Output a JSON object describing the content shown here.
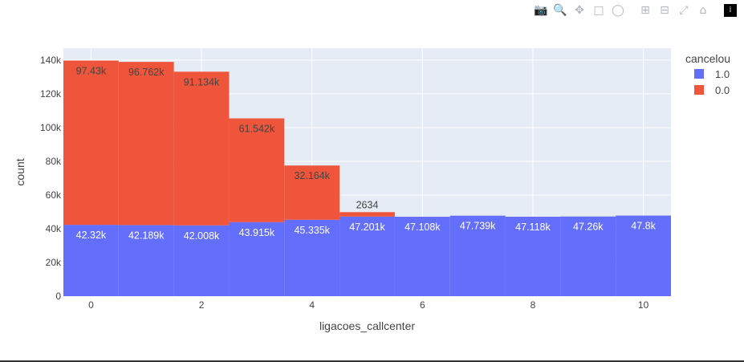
{
  "chart_data": {
    "type": "bar",
    "barmode": "stack",
    "title": "",
    "xlabel": "ligacoes_callcenter",
    "ylabel": "count",
    "categories": [
      0,
      1,
      2,
      3,
      4,
      5,
      6,
      7,
      8,
      9,
      10
    ],
    "xticks": [
      "0",
      "2",
      "4",
      "6",
      "8",
      "10"
    ],
    "xtick_values": [
      0,
      2,
      4,
      6,
      8,
      10
    ],
    "yticks": [
      "0",
      "20k",
      "40k",
      "60k",
      "80k",
      "100k",
      "120k",
      "140k"
    ],
    "ytick_values": [
      0,
      20000,
      40000,
      60000,
      80000,
      100000,
      120000,
      140000
    ],
    "xlim": [
      -0.5,
      10.5
    ],
    "ylim": [
      0,
      147100
    ],
    "grid": true,
    "legend": {
      "title": "cancelou",
      "placement": "top-right"
    },
    "series": [
      {
        "name": "1.0",
        "color": "#636efa",
        "values": [
          42320,
          42189,
          42008,
          43915,
          45335,
          47201,
          47108,
          47739,
          47118,
          47260,
          47800
        ],
        "labels": [
          "42.32k",
          "42.189k",
          "42.008k",
          "43.915k",
          "45.335k",
          "47.201k",
          "47.108k",
          "47.739k",
          "47.118k",
          "47.26k",
          "47.8k"
        ]
      },
      {
        "name": "0.0",
        "color": "#ef553b",
        "values": [
          97430,
          96762,
          91134,
          61542,
          32164,
          2634,
          0,
          0,
          0,
          0,
          0
        ],
        "labels": [
          "97.43k",
          "96.762k",
          "91.134k",
          "61.542k",
          "32.164k",
          "2634",
          "",
          "",
          "",
          "",
          ""
        ]
      }
    ]
  },
  "modebar": [
    "camera-icon",
    "zoom-icon",
    "pan-icon",
    "box-select-icon",
    "lasso-icon",
    "zoom-in-icon",
    "zoom-out-icon",
    "autoscale-icon",
    "reset-axes-icon",
    "plotly-logo-icon"
  ]
}
